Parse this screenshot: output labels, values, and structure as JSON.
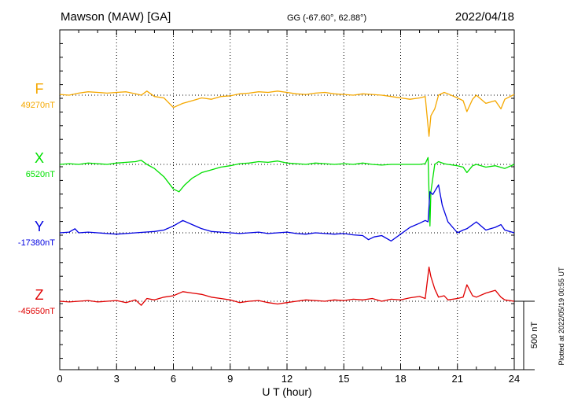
{
  "header": {
    "station": "Mawson (MAW)  [GA]",
    "coords": "GG (-67.60°,  62.88°)",
    "date": "2022/04/18"
  },
  "footer": {
    "plotted_at": "Plotted at 2022/05/19 00:55 UT",
    "scale_label": "500 nT"
  },
  "colors": {
    "F": "#f5a800",
    "X": "#00e000",
    "Y": "#0000e0",
    "Z": "#e00000"
  },
  "chart_data": {
    "type": "line",
    "title": "Mawson (MAW)  [GA]",
    "subtitle": "GG (-67.60°,  62.88°)",
    "xlabel": "U T (hour)",
    "ylabel": "",
    "xlim": [
      0,
      24
    ],
    "x_ticks": [
      0,
      3,
      6,
      9,
      12,
      15,
      18,
      21,
      24
    ],
    "grid": true,
    "scale_bar_nT": 500,
    "series": [
      {
        "name": "F",
        "baseline_label": "49270nT",
        "baseline_nT": 49270,
        "x": [
          0,
          0.5,
          1,
          1.5,
          2,
          2.5,
          3,
          3.5,
          4,
          4.3,
          4.6,
          5,
          5.5,
          6,
          6.5,
          7,
          7.5,
          8,
          8.5,
          9,
          9.5,
          10,
          10.5,
          11,
          11.5,
          12,
          12.5,
          13,
          13.5,
          14,
          14.5,
          15,
          15.5,
          16,
          16.5,
          17,
          17.5,
          18,
          18.5,
          19,
          19.3,
          19.5,
          19.6,
          19.8,
          20,
          20.3,
          20.5,
          21,
          21.3,
          21.5,
          21.8,
          22,
          22.5,
          23,
          23.3,
          23.5,
          24
        ],
        "values": [
          5,
          0,
          15,
          25,
          20,
          15,
          20,
          25,
          10,
          0,
          30,
          -10,
          -20,
          -90,
          -60,
          -40,
          -20,
          -30,
          -10,
          -5,
          10,
          15,
          25,
          20,
          30,
          20,
          10,
          5,
          15,
          20,
          10,
          5,
          0,
          10,
          5,
          0,
          -10,
          -20,
          -30,
          -20,
          -10,
          -300,
          -150,
          -100,
          0,
          20,
          10,
          -20,
          -40,
          -120,
          -30,
          0,
          -60,
          -40,
          -100,
          -30,
          5
        ]
      },
      {
        "name": "X",
        "baseline_label": "6520nT",
        "baseline_nT": 6520,
        "x": [
          0,
          0.5,
          1,
          1.5,
          2,
          2.5,
          3,
          3.5,
          4,
          4.3,
          4.6,
          5,
          5.5,
          6,
          6.3,
          6.6,
          7,
          7.5,
          8,
          8.5,
          9,
          9.5,
          10,
          10.5,
          11,
          11.5,
          12,
          12.5,
          13,
          13.5,
          14,
          14.5,
          15,
          15.5,
          16,
          16.5,
          17,
          17.5,
          18,
          18.5,
          19,
          19.3,
          19.45,
          19.55,
          19.6,
          19.8,
          20,
          20.3,
          20.5,
          21,
          21.3,
          21.5,
          21.8,
          22,
          22.5,
          23,
          23.5,
          24
        ],
        "values": [
          0,
          5,
          0,
          10,
          5,
          0,
          10,
          15,
          20,
          30,
          0,
          -30,
          -90,
          -180,
          -200,
          -150,
          -100,
          -60,
          -40,
          -20,
          -10,
          5,
          10,
          20,
          15,
          25,
          10,
          5,
          0,
          10,
          5,
          0,
          5,
          0,
          10,
          0,
          -5,
          0,
          0,
          0,
          0,
          5,
          50,
          -450,
          -200,
          0,
          20,
          5,
          0,
          -10,
          -20,
          -60,
          -10,
          0,
          -20,
          -10,
          -30,
          0
        ]
      },
      {
        "name": "Y",
        "baseline_label": "-17380nT",
        "baseline_nT": -17380,
        "x": [
          0,
          0.5,
          0.8,
          1,
          1.5,
          2,
          2.5,
          3,
          3.5,
          4,
          4.5,
          5,
          5.5,
          6,
          6.5,
          7,
          7.5,
          8,
          8.5,
          9,
          9.5,
          10,
          10.5,
          11,
          11.5,
          12,
          12.5,
          13,
          13.5,
          14,
          14.5,
          15,
          15.5,
          16,
          16.3,
          16.6,
          17,
          17.5,
          18,
          18.5,
          19,
          19.3,
          19.45,
          19.55,
          19.7,
          20,
          20.2,
          20.5,
          21,
          21.3,
          21.5,
          22,
          22.5,
          23,
          23.3,
          23.5,
          24
        ],
        "values": [
          0,
          5,
          30,
          0,
          5,
          0,
          -5,
          -10,
          -5,
          0,
          5,
          10,
          20,
          50,
          90,
          60,
          30,
          10,
          5,
          0,
          -5,
          0,
          5,
          -5,
          0,
          5,
          -5,
          -10,
          0,
          -5,
          -10,
          -5,
          -15,
          -20,
          -50,
          -30,
          -20,
          -60,
          -10,
          40,
          70,
          90,
          80,
          300,
          280,
          350,
          200,
          80,
          0,
          20,
          30,
          80,
          20,
          40,
          60,
          20,
          0
        ]
      },
      {
        "name": "Z",
        "baseline_label": "-45650nT",
        "baseline_nT": -45650,
        "x": [
          0,
          0.5,
          1,
          1.5,
          2,
          2.5,
          3,
          3.5,
          4,
          4.3,
          4.6,
          5,
          5.5,
          6,
          6.5,
          7,
          7.5,
          8,
          8.5,
          9,
          9.5,
          10,
          10.5,
          11,
          11.5,
          12,
          12.5,
          13,
          13.5,
          14,
          14.5,
          15,
          15.5,
          16,
          16.5,
          17,
          17.5,
          18,
          18.5,
          19,
          19.3,
          19.5,
          19.6,
          19.8,
          20,
          20.3,
          20.5,
          21,
          21.3,
          21.5,
          21.8,
          22,
          22.5,
          23,
          23.3,
          23.5,
          24
        ],
        "values": [
          0,
          -5,
          0,
          5,
          -5,
          0,
          5,
          -10,
          10,
          -30,
          20,
          10,
          30,
          40,
          70,
          60,
          50,
          30,
          20,
          10,
          -10,
          0,
          5,
          -10,
          -20,
          -10,
          0,
          10,
          5,
          0,
          10,
          5,
          15,
          10,
          20,
          0,
          15,
          10,
          25,
          35,
          20,
          250,
          180,
          90,
          30,
          40,
          10,
          20,
          30,
          120,
          40,
          30,
          60,
          80,
          30,
          10,
          0
        ]
      }
    ]
  }
}
